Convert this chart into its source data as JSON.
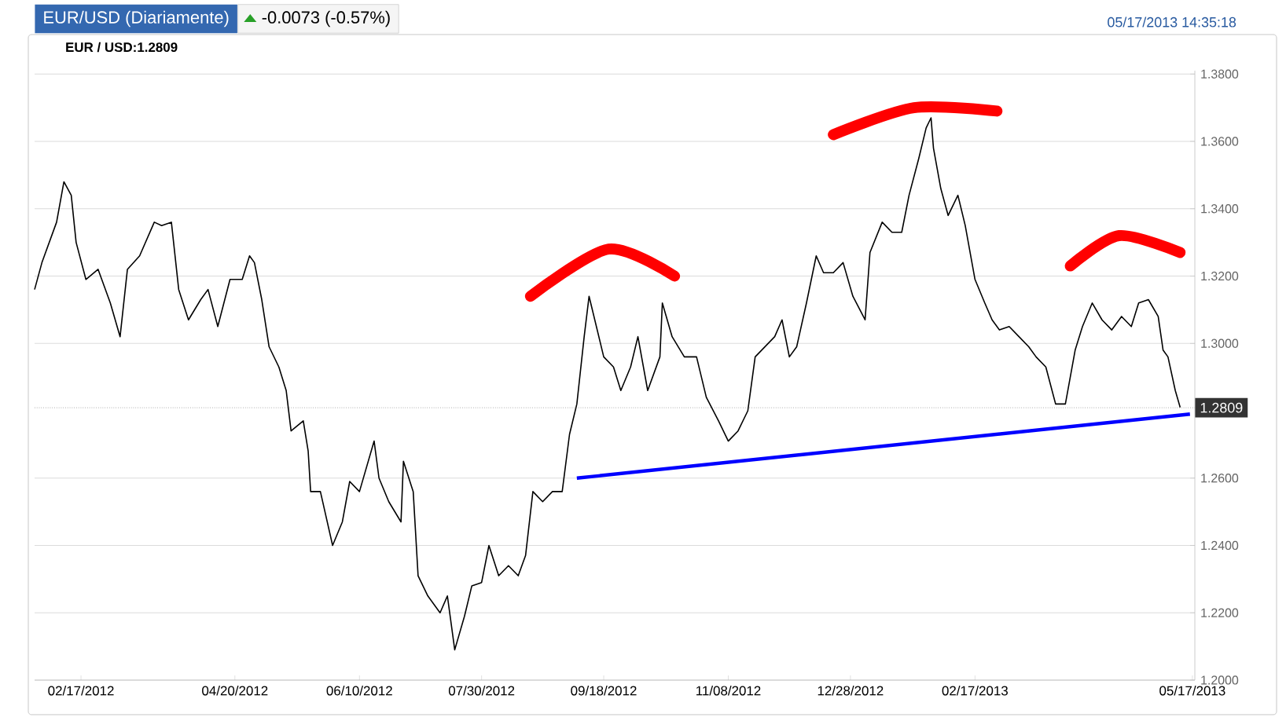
{
  "chart_data": {
    "type": "line",
    "title": "EUR/USD (Diariamente)",
    "subtitle": "-0.0073 (-0.57%)",
    "annotations": [
      "05/17/2013 14:35:18",
      "EUR / USD:1.2809"
    ],
    "series": [
      {
        "color": "#000000",
        "x": [
          "2012-01-29",
          "2012-02-01",
          "2012-02-07",
          "2012-02-10",
          "2012-02-13",
          "2012-02-15",
          "2012-02-19",
          "2012-02-24",
          "2012-02-29",
          "2012-03-04",
          "2012-03-07",
          "2012-03-12",
          "2012-03-18",
          "2012-03-21",
          "2012-03-25",
          "2012-03-28",
          "2012-04-01",
          "2012-04-06",
          "2012-04-09",
          "2012-04-13",
          "2012-04-18",
          "2012-04-23",
          "2012-04-26",
          "2012-04-28",
          "2012-05-01",
          "2012-05-04",
          "2012-05-08",
          "2012-05-11",
          "2012-05-13",
          "2012-05-18",
          "2012-05-20",
          "2012-05-21",
          "2012-05-25",
          "2012-05-30",
          "2012-06-03",
          "2012-06-06",
          "2012-06-10",
          "2012-06-16",
          "2012-06-18",
          "2012-06-22",
          "2012-06-27",
          "2012-06-28",
          "2012-07-02",
          "2012-07-04",
          "2012-07-08",
          "2012-07-13",
          "2012-07-16",
          "2012-07-19",
          "2012-07-23",
          "2012-07-26",
          "2012-07-30",
          "2012-08-02",
          "2012-08-06",
          "2012-08-10",
          "2012-08-14",
          "2012-08-17",
          "2012-08-20",
          "2012-08-24",
          "2012-08-28",
          "2012-09-01",
          "2012-09-04",
          "2012-09-07",
          "2012-09-10",
          "2012-09-12",
          "2012-09-15",
          "2012-09-18",
          "2012-09-22",
          "2012-09-25",
          "2012-09-29",
          "2012-10-02",
          "2012-10-06",
          "2012-10-11",
          "2012-10-12",
          "2012-10-16",
          "2012-10-21",
          "2012-10-26",
          "2012-10-30",
          "2012-11-04",
          "2012-11-08",
          "2012-11-12",
          "2012-11-16",
          "2012-11-19",
          "2012-11-23",
          "2012-11-27",
          "2012-11-30",
          "2012-12-03",
          "2012-12-06",
          "2012-12-10",
          "2012-12-14",
          "2012-12-17",
          "2012-12-21",
          "2012-12-25",
          "2012-12-29",
          "2013-01-03",
          "2013-01-05",
          "2013-01-10",
          "2013-01-14",
          "2013-01-18",
          "2013-01-21",
          "2013-01-25",
          "2013-01-28",
          "2013-01-30",
          "2013-01-31",
          "2013-02-03",
          "2013-02-06",
          "2013-02-10",
          "2013-02-13",
          "2013-02-17",
          "2013-02-21",
          "2013-02-24",
          "2013-02-27",
          "2013-03-03",
          "2013-03-07",
          "2013-03-11",
          "2013-03-14",
          "2013-03-18",
          "2013-03-22",
          "2013-03-26",
          "2013-03-30",
          "2013-04-02",
          "2013-04-06",
          "2013-04-10",
          "2013-04-14",
          "2013-04-18",
          "2013-04-22",
          "2013-04-25",
          "2013-04-29",
          "2013-05-03",
          "2013-05-05",
          "2013-05-07",
          "2013-05-10",
          "2013-05-12"
        ],
        "values": [
          1.316,
          1.324,
          1.336,
          1.348,
          1.344,
          1.33,
          1.319,
          1.322,
          1.312,
          1.302,
          1.322,
          1.326,
          1.336,
          1.335,
          1.336,
          1.316,
          1.307,
          1.313,
          1.316,
          1.305,
          1.319,
          1.319,
          1.326,
          1.324,
          1.313,
          1.299,
          1.293,
          1.286,
          1.274,
          1.277,
          1.268,
          1.256,
          1.256,
          1.24,
          1.247,
          1.259,
          1.256,
          1.271,
          1.26,
          1.253,
          1.247,
          1.265,
          1.256,
          1.231,
          1.225,
          1.22,
          1.225,
          1.209,
          1.219,
          1.228,
          1.229,
          1.24,
          1.231,
          1.234,
          1.231,
          1.237,
          1.256,
          1.253,
          1.256,
          1.256,
          1.273,
          1.282,
          1.302,
          1.314,
          1.305,
          1.296,
          1.293,
          1.286,
          1.293,
          1.302,
          1.286,
          1.296,
          1.312,
          1.302,
          1.296,
          1.296,
          1.284,
          1.277,
          1.271,
          1.274,
          1.28,
          1.296,
          1.299,
          1.302,
          1.307,
          1.296,
          1.299,
          1.312,
          1.326,
          1.321,
          1.321,
          1.324,
          1.314,
          1.307,
          1.327,
          1.336,
          1.333,
          1.333,
          1.344,
          1.355,
          1.364,
          1.367,
          1.358,
          1.346,
          1.338,
          1.344,
          1.335,
          1.319,
          1.312,
          1.307,
          1.304,
          1.305,
          1.302,
          1.299,
          1.296,
          1.293,
          1.282,
          1.282,
          1.298,
          1.305,
          1.312,
          1.307,
          1.304,
          1.308,
          1.305,
          1.312,
          1.313,
          1.308,
          1.298,
          1.296,
          1.286,
          1.281
        ]
      },
      {
        "type": "line",
        "color": "#0000ff",
        "x": [
          "2012-09-07",
          "2013-05-16"
        ],
        "values": [
          1.26,
          1.279
        ]
      }
    ],
    "xlim": [
      "2012-01-29",
      "2013-05-18"
    ],
    "xticks": [
      {
        "value": "2012-02-17",
        "label": "02/17/2012"
      },
      {
        "value": "2012-04-20",
        "label": "04/20/2012"
      },
      {
        "value": "2012-06-10",
        "label": "06/10/2012"
      },
      {
        "value": "2012-07-30",
        "label": "07/30/2012"
      },
      {
        "value": "2012-09-18",
        "label": "09/18/2012"
      },
      {
        "value": "2012-11-08",
        "label": "11/08/2012"
      },
      {
        "value": "2012-12-28",
        "label": "12/28/2012"
      },
      {
        "value": "2013-02-17",
        "label": "02/17/2013"
      },
      {
        "value": "2013-05-17",
        "label": "05/17/2013"
      }
    ],
    "ylim": [
      1.2,
      1.381
    ],
    "yticks": [
      {
        "value": 1.2,
        "label": "1.2000"
      },
      {
        "value": 1.22,
        "label": "1.2200"
      },
      {
        "value": 1.24,
        "label": "1.2400"
      },
      {
        "value": 1.26,
        "label": "1.2600"
      },
      {
        "value": 1.3,
        "label": "1.3000"
      },
      {
        "value": 1.32,
        "label": "1.3200"
      },
      {
        "value": 1.34,
        "label": "1.3400"
      },
      {
        "value": 1.36,
        "label": "1.3600"
      },
      {
        "value": 1.38,
        "label": "1.3800"
      }
    ],
    "ref_lines": [
      {
        "axis": "y",
        "value": 1.2809,
        "label": "1.2809",
        "line_style": "dotted",
        "color": "#808080"
      }
    ],
    "grid": "y",
    "marker": "none"
  }
}
